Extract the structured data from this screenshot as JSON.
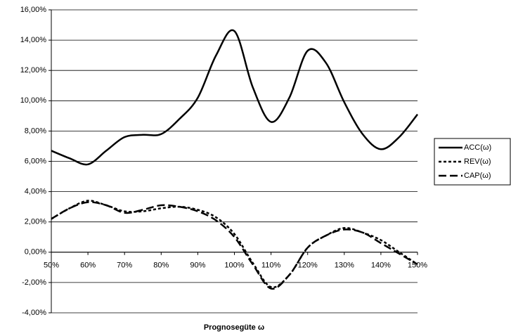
{
  "chart_data": {
    "type": "line",
    "xlabel": "Prognosegüte ω",
    "x": [
      50,
      55,
      60,
      65,
      70,
      75,
      80,
      85,
      90,
      95,
      100,
      105,
      110,
      115,
      120,
      125,
      130,
      135,
      140,
      145,
      150
    ],
    "series": [
      {
        "name": "ACC(ω)",
        "color": "#000000",
        "dash": "solid",
        "values": [
          6.7,
          6.2,
          5.8,
          6.7,
          7.6,
          7.75,
          7.8,
          8.8,
          10.2,
          13.0,
          14.6,
          10.9,
          8.6,
          10.2,
          13.3,
          12.5,
          9.9,
          7.8,
          6.8,
          7.6,
          9.1
        ]
      },
      {
        "name": "REV(ω)",
        "color": "#000000",
        "dash": "dotted",
        "values": [
          2.2,
          2.9,
          3.4,
          3.1,
          2.7,
          2.7,
          2.9,
          3.0,
          2.8,
          2.3,
          1.2,
          -0.7,
          -2.3,
          -1.5,
          0.3,
          1.1,
          1.6,
          1.3,
          0.8,
          0.0,
          -0.8
        ]
      },
      {
        "name": "CAP(ω)",
        "color": "#000000",
        "dash": "dashed",
        "values": [
          2.2,
          2.9,
          3.3,
          3.1,
          2.6,
          2.8,
          3.1,
          3.0,
          2.7,
          2.1,
          1.0,
          -0.8,
          -2.4,
          -1.5,
          0.3,
          1.1,
          1.5,
          1.3,
          0.6,
          -0.1,
          -0.8
        ]
      }
    ],
    "xlim": [
      50,
      150
    ],
    "xticks": [
      {
        "value": 50,
        "label": "50%"
      },
      {
        "value": 60,
        "label": "60%"
      },
      {
        "value": 70,
        "label": "70%"
      },
      {
        "value": 80,
        "label": "80%"
      },
      {
        "value": 90,
        "label": "90%"
      },
      {
        "value": 100,
        "label": "100%"
      },
      {
        "value": 110,
        "label": "110%"
      },
      {
        "value": 120,
        "label": "120%"
      },
      {
        "value": 130,
        "label": "130%"
      },
      {
        "value": 140,
        "label": "140%"
      },
      {
        "value": 150,
        "label": "150%"
      }
    ],
    "ylim": [
      -4,
      16
    ],
    "yticks": [
      {
        "value": -4,
        "label": "-4,00%"
      },
      {
        "value": -2,
        "label": "-2,00%"
      },
      {
        "value": 0,
        "label": "0,00%"
      },
      {
        "value": 2,
        "label": "2,00%"
      },
      {
        "value": 4,
        "label": "4,00%"
      },
      {
        "value": 6,
        "label": "6,00%"
      },
      {
        "value": 8,
        "label": "8,00%"
      },
      {
        "value": 10,
        "label": "10,00%"
      },
      {
        "value": 12,
        "label": "12,00%"
      },
      {
        "value": 14,
        "label": "14,00%"
      },
      {
        "value": 16,
        "label": "16,00%"
      }
    ],
    "grid": true,
    "legend": "right"
  }
}
